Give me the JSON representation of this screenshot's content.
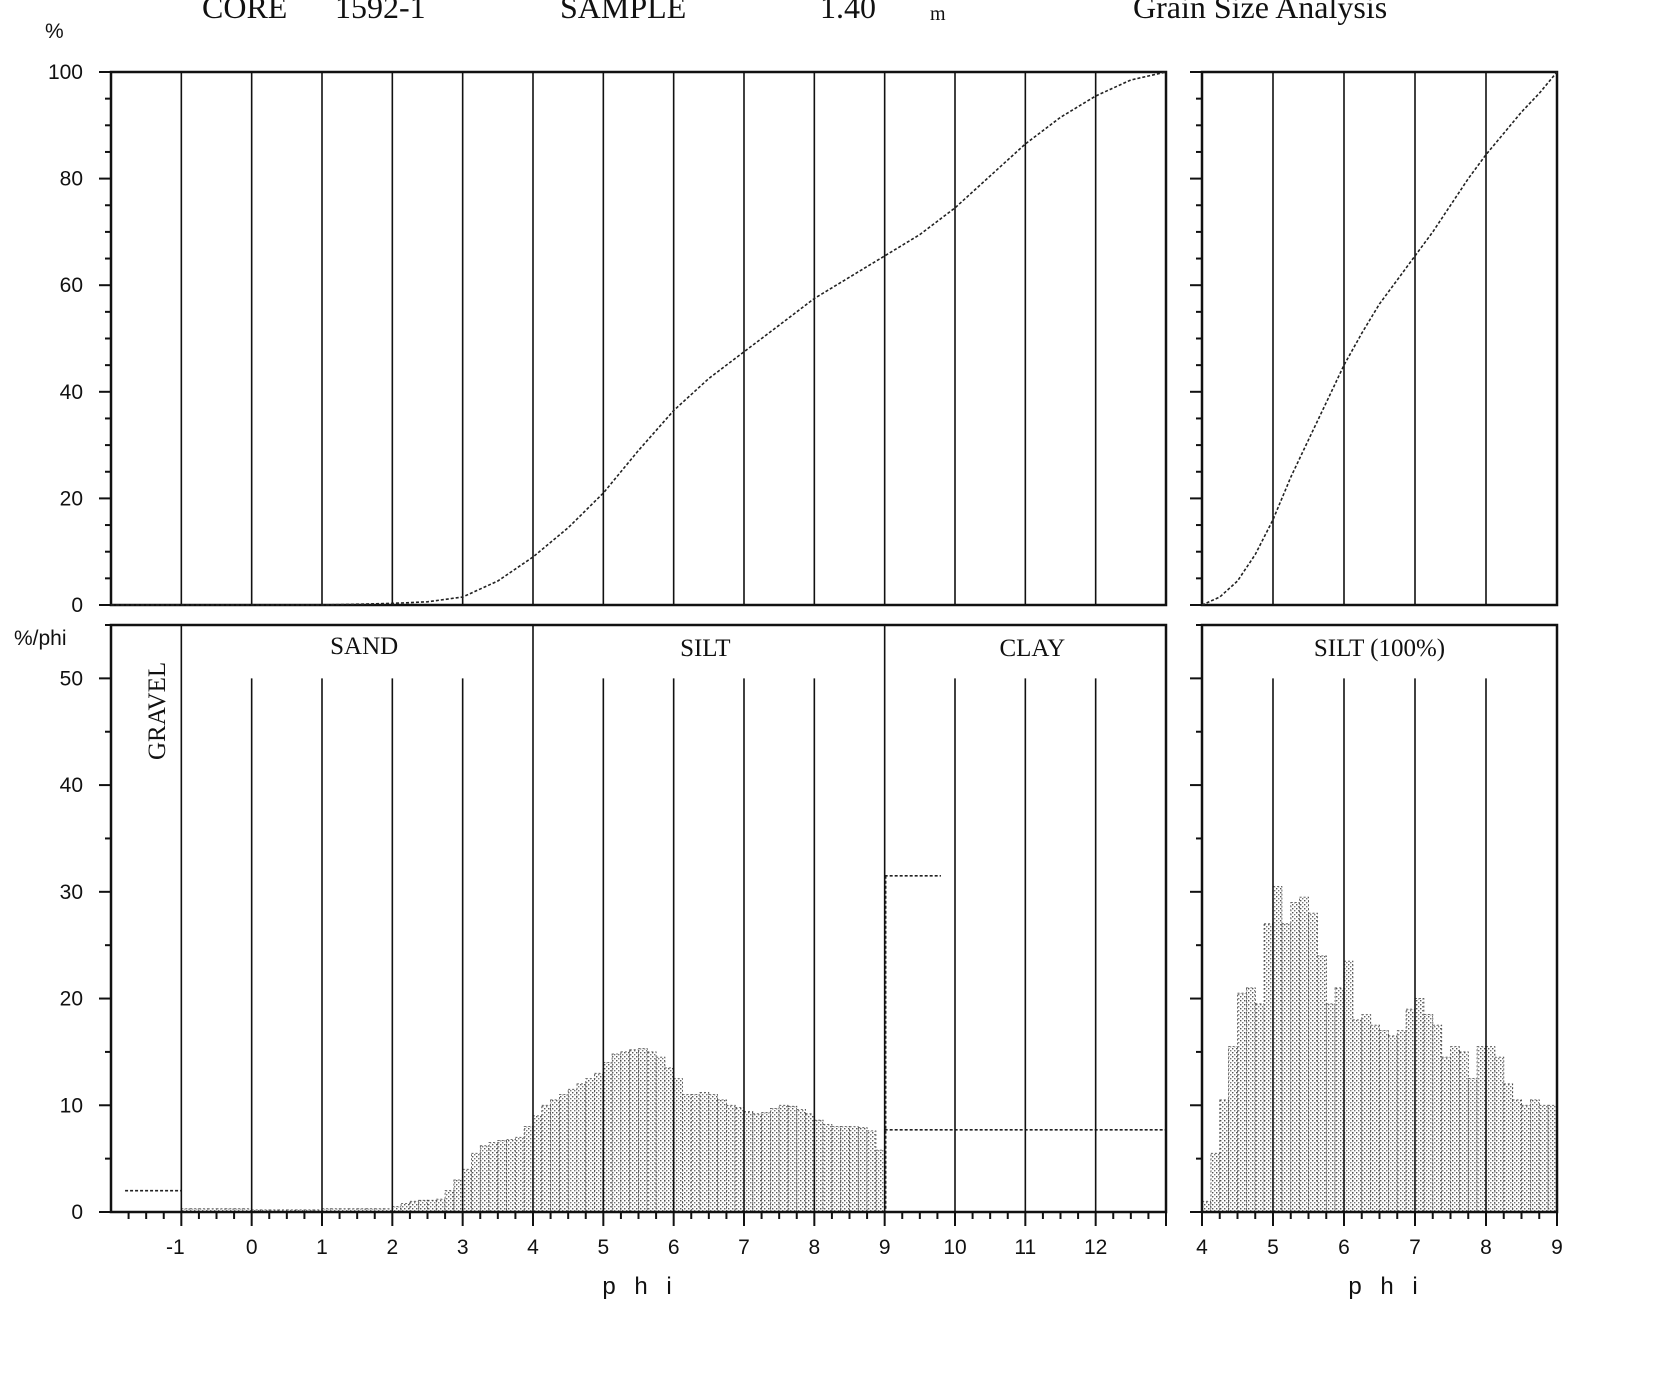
{
  "header": {
    "core_label": "CORE",
    "core_id": "1592-1",
    "sample_label": "SAMPLE",
    "sample_depth": "1.40",
    "depth_unit": "m",
    "analysis_title": "Grain Size Analysis"
  },
  "chart_data": [
    {
      "type": "line",
      "panel": "cumulative-full",
      "ylabel": "%",
      "xlim": [
        -2,
        13
      ],
      "ylim": [
        0,
        100
      ],
      "y_ticks": [
        0,
        20,
        40,
        60,
        80,
        100
      ],
      "x_grid": [
        -1,
        0,
        1,
        2,
        3,
        4,
        5,
        6,
        7,
        8,
        9,
        10,
        11,
        12
      ],
      "grid": true,
      "series": [
        {
          "x": [
            -2,
            -1,
            0,
            1,
            2,
            2.5,
            3,
            3.5,
            4,
            4.5,
            5,
            5.5,
            6,
            6.5,
            7,
            7.5,
            8,
            8.5,
            9,
            9.5,
            10,
            10.5,
            11,
            11.5,
            12,
            12.5,
            13
          ],
          "y": [
            0,
            0,
            0,
            0,
            0.3,
            0.6,
            1.5,
            4.5,
            9,
            14.5,
            21,
            29,
            36.5,
            42.5,
            47.5,
            52.5,
            57.5,
            61.5,
            65.5,
            69.5,
            74.5,
            80.5,
            86.5,
            91.5,
            95.5,
            98.5,
            100
          ]
        }
      ]
    },
    {
      "type": "line",
      "panel": "cumulative-silt",
      "xlim": [
        4,
        9
      ],
      "ylim": [
        0,
        100
      ],
      "y_ticks": [
        0,
        20,
        40,
        60,
        80,
        100
      ],
      "x_grid": [
        5,
        6,
        7,
        8
      ],
      "grid": true,
      "series": [
        {
          "x": [
            4,
            4.25,
            4.5,
            4.75,
            5,
            5.25,
            5.5,
            5.75,
            6,
            6.25,
            6.5,
            6.75,
            7,
            7.25,
            7.5,
            7.75,
            8,
            8.25,
            8.5,
            8.75,
            9
          ],
          "y": [
            0,
            1.5,
            4.5,
            9.5,
            16,
            24,
            31,
            38,
            45,
            51,
            56.5,
            61,
            65.5,
            70,
            75,
            80,
            84.5,
            88.5,
            92.5,
            96,
            100
          ]
        }
      ]
    },
    {
      "type": "bar",
      "panel": "frequency-full",
      "ylabel": "%/phi",
      "xlabel": "p h i",
      "xlim": [
        -2,
        13
      ],
      "ylim": [
        0,
        55
      ],
      "y_ticks": [
        0,
        10,
        20,
        30,
        40,
        50
      ],
      "x_ticks": [
        -1,
        0,
        1,
        2,
        3,
        4,
        5,
        6,
        7,
        8,
        9,
        10,
        11,
        12
      ],
      "regions": [
        {
          "label": "GRAVEL",
          "from": -2,
          "to": -1
        },
        {
          "label": "SAND",
          "from": -1,
          "to": 4
        },
        {
          "label": "SILT",
          "from": 4,
          "to": 9
        },
        {
          "label": "CLAY",
          "from": 9,
          "to": 13
        }
      ],
      "bin_width": 0.125,
      "bin_start": -1,
      "values": [
        0.3,
        0.3,
        0.3,
        0.3,
        0.3,
        0.3,
        0.3,
        0.3,
        0.2,
        0.2,
        0.2,
        0.2,
        0.2,
        0.2,
        0.2,
        0.2,
        0.3,
        0.3,
        0.3,
        0.3,
        0.3,
        0.3,
        0.3,
        0.3,
        0.5,
        0.8,
        1.0,
        1.1,
        1.1,
        1.2,
        2.0,
        3.0,
        4.0,
        5.5,
        6.2,
        6.5,
        6.7,
        6.8,
        7.0,
        8.0,
        9.0,
        10.0,
        10.5,
        11.0,
        11.5,
        12.0,
        12.5,
        13.0,
        14.0,
        14.8,
        15.0,
        15.2,
        15.3,
        15.0,
        14.5,
        13.5,
        12.5,
        11.0,
        11.0,
        11.2,
        11.0,
        10.5,
        10.0,
        9.8,
        9.4,
        9.2,
        9.3,
        9.7,
        10.0,
        9.9,
        9.6,
        9.2,
        8.6,
        8.2,
        8.0,
        8.0,
        8.0,
        7.9,
        7.6,
        5.8
      ],
      "clay_steps": [
        {
          "from": 9,
          "to": 9.8,
          "value": 31.5
        },
        {
          "from": 9,
          "to": 13,
          "value": 7.7
        }
      ],
      "gravel_step": {
        "from": -1.8,
        "to": -1,
        "value": 2.0
      }
    },
    {
      "type": "bar",
      "panel": "frequency-silt",
      "xlabel": "p h i",
      "xlim": [
        4,
        9
      ],
      "ylim": [
        0,
        55
      ],
      "y_ticks": [
        0,
        10,
        20,
        30,
        40,
        50
      ],
      "x_ticks": [
        4,
        5,
        6,
        7,
        8,
        9
      ],
      "regions": [
        {
          "label": "SILT (100%)",
          "from": 4,
          "to": 9
        }
      ],
      "bin_width": 0.125,
      "bin_start": 4,
      "values": [
        1.0,
        5.5,
        10.5,
        15.5,
        20.5,
        21.0,
        19.5,
        27.0,
        30.5,
        27.0,
        29.0,
        29.5,
        28.0,
        24.0,
        19.5,
        21.0,
        23.5,
        18.0,
        18.5,
        17.5,
        17.0,
        16.5,
        17.0,
        19.0,
        20.0,
        18.5,
        17.5,
        14.5,
        15.5,
        15.0,
        12.5,
        15.5,
        15.5,
        14.5,
        12.0,
        10.5,
        10.0,
        10.5,
        10.0,
        10.0
      ]
    }
  ]
}
